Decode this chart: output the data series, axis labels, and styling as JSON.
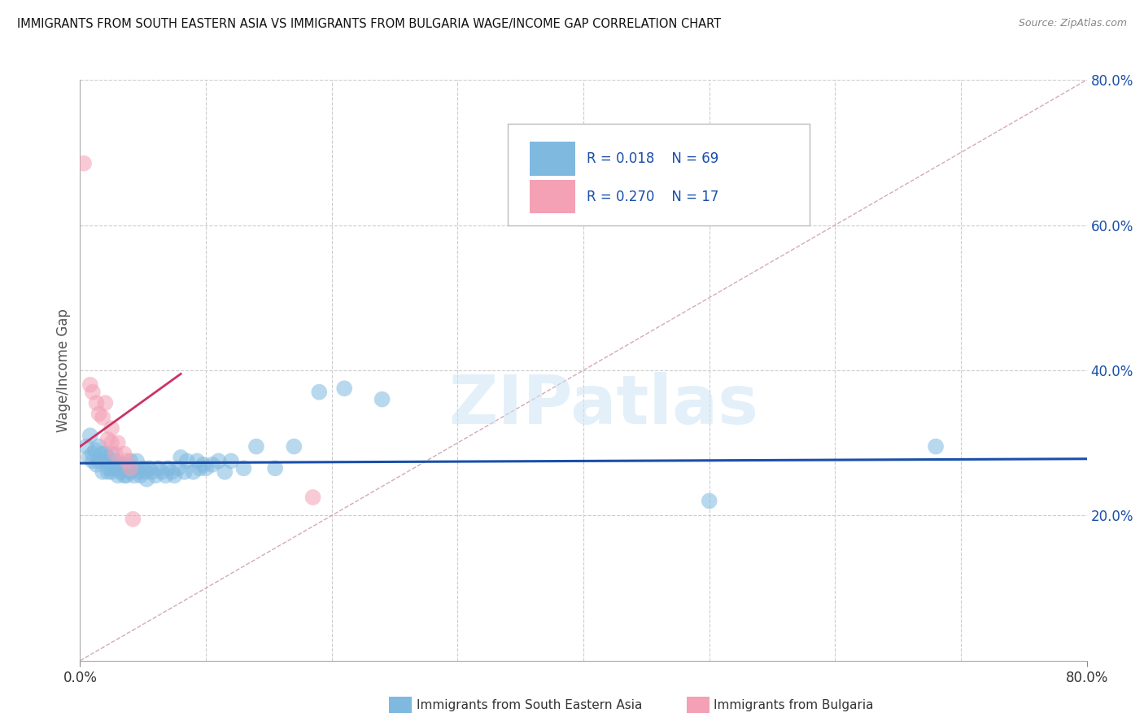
{
  "title": "IMMIGRANTS FROM SOUTH EASTERN ASIA VS IMMIGRANTS FROM BULGARIA WAGE/INCOME GAP CORRELATION CHART",
  "source": "Source: ZipAtlas.com",
  "ylabel": "Wage/Income Gap",
  "xlim": [
    0.0,
    0.8
  ],
  "ylim": [
    0.0,
    0.8
  ],
  "yticks_right": [
    0.2,
    0.4,
    0.6,
    0.8
  ],
  "ytick_right_labels": [
    "20.0%",
    "40.0%",
    "60.0%",
    "80.0%"
  ],
  "R_blue": 0.018,
  "N_blue": 69,
  "R_pink": 0.27,
  "N_pink": 17,
  "legend_label_blue": "Immigrants from South Eastern Asia",
  "legend_label_pink": "Immigrants from Bulgaria",
  "blue_color": "#7fb9e0",
  "pink_color": "#f4a0b5",
  "blue_line_color": "#1a4faa",
  "pink_line_color": "#cc3366",
  "diag_line_color": "#d0a0b0",
  "legend_text_color": "#1a4faa",
  "watermark": "ZIPatlas",
  "blue_dots_x": [
    0.005,
    0.007,
    0.008,
    0.01,
    0.01,
    0.012,
    0.013,
    0.015,
    0.015,
    0.017,
    0.018,
    0.02,
    0.02,
    0.022,
    0.022,
    0.023,
    0.025,
    0.025,
    0.027,
    0.028,
    0.03,
    0.03,
    0.032,
    0.033,
    0.035,
    0.035,
    0.037,
    0.038,
    0.04,
    0.04,
    0.042,
    0.043,
    0.045,
    0.047,
    0.048,
    0.05,
    0.052,
    0.053,
    0.055,
    0.057,
    0.06,
    0.062,
    0.065,
    0.068,
    0.07,
    0.073,
    0.075,
    0.078,
    0.08,
    0.083,
    0.085,
    0.09,
    0.093,
    0.095,
    0.098,
    0.1,
    0.105,
    0.11,
    0.115,
    0.12,
    0.13,
    0.14,
    0.155,
    0.17,
    0.19,
    0.21,
    0.24,
    0.5,
    0.68
  ],
  "blue_dots_y": [
    0.295,
    0.28,
    0.31,
    0.285,
    0.275,
    0.29,
    0.27,
    0.295,
    0.275,
    0.285,
    0.26,
    0.285,
    0.275,
    0.26,
    0.28,
    0.265,
    0.285,
    0.26,
    0.265,
    0.275,
    0.265,
    0.255,
    0.26,
    0.27,
    0.255,
    0.265,
    0.255,
    0.265,
    0.275,
    0.26,
    0.265,
    0.255,
    0.275,
    0.26,
    0.255,
    0.265,
    0.26,
    0.25,
    0.265,
    0.26,
    0.255,
    0.265,
    0.26,
    0.255,
    0.265,
    0.26,
    0.255,
    0.265,
    0.28,
    0.26,
    0.275,
    0.26,
    0.275,
    0.265,
    0.27,
    0.265,
    0.27,
    0.275,
    0.26,
    0.275,
    0.265,
    0.295,
    0.265,
    0.295,
    0.37,
    0.375,
    0.36,
    0.22,
    0.295
  ],
  "pink_dots_x": [
    0.003,
    0.008,
    0.01,
    0.013,
    0.015,
    0.018,
    0.02,
    0.022,
    0.025,
    0.025,
    0.028,
    0.03,
    0.035,
    0.037,
    0.04,
    0.042,
    0.185
  ],
  "pink_dots_y": [
    0.685,
    0.38,
    0.37,
    0.355,
    0.34,
    0.335,
    0.355,
    0.305,
    0.32,
    0.3,
    0.285,
    0.3,
    0.285,
    0.275,
    0.265,
    0.195,
    0.225
  ],
  "blue_trend_x": [
    0.0,
    0.8
  ],
  "blue_trend_y": [
    0.272,
    0.278
  ],
  "pink_trend_x": [
    0.0,
    0.08
  ],
  "pink_trend_y": [
    0.295,
    0.395
  ]
}
